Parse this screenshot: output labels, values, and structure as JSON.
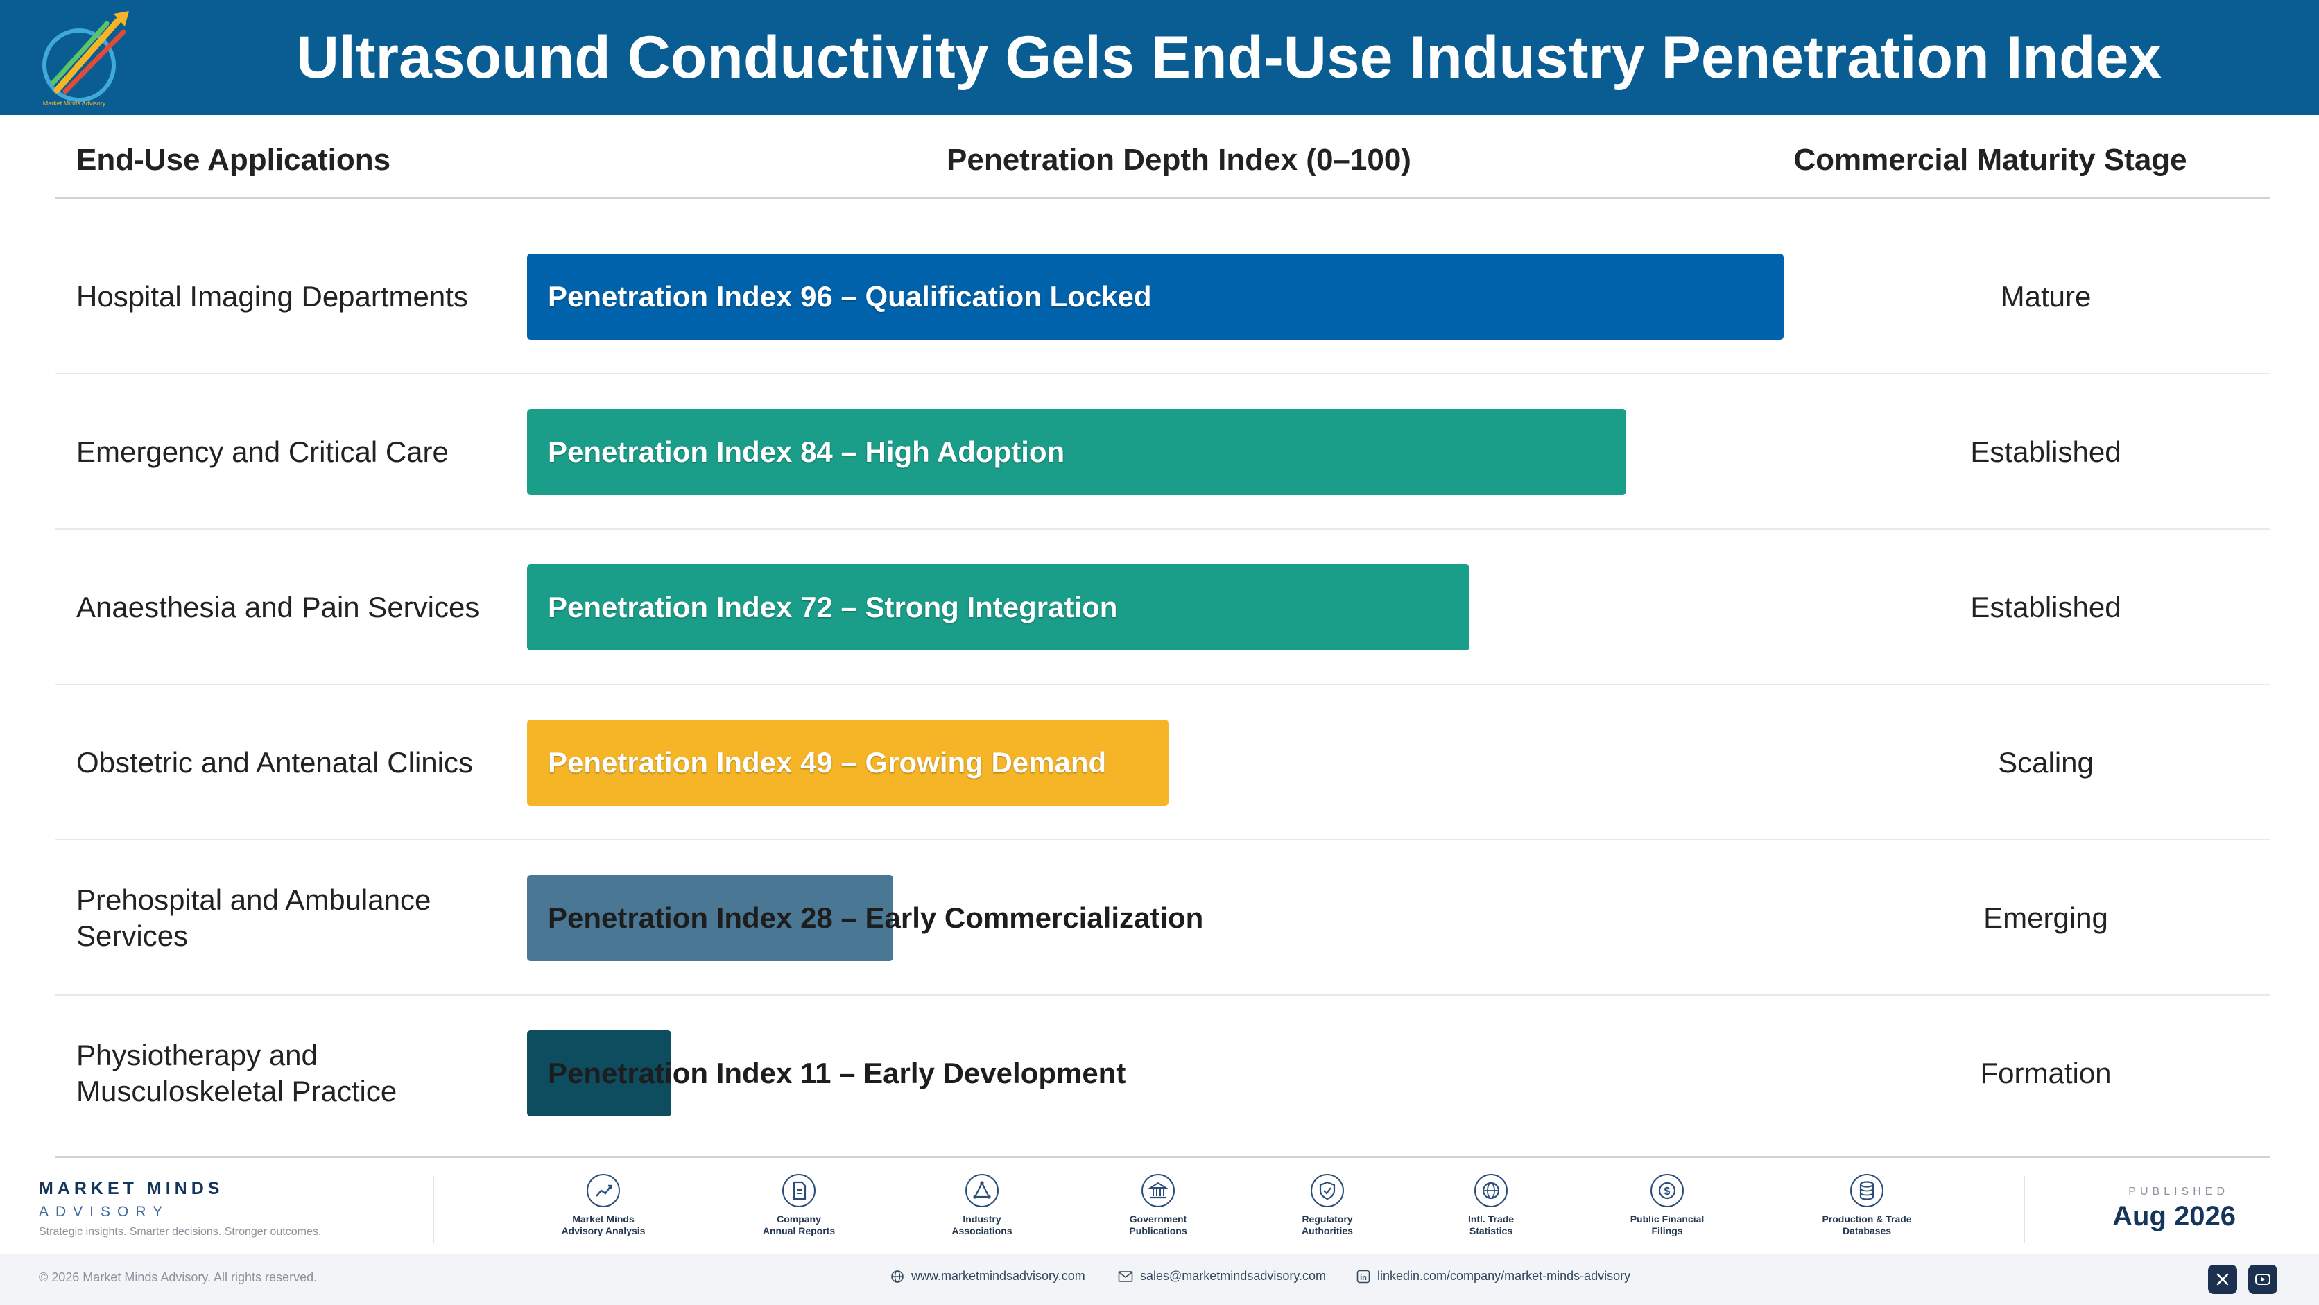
{
  "title": "Ultrasound Conductivity Gels End-Use Industry Penetration Index",
  "logo_text": "Market Minds Advisory",
  "columns": {
    "application": "End-Use Applications",
    "index": "Penetration Depth Index (0–100)",
    "stage": "Commercial Maturity Stage"
  },
  "chart_data": {
    "type": "bar",
    "orientation": "horizontal",
    "xlim": [
      0,
      100
    ],
    "categories": [
      "Hospital Imaging Departments",
      "Emergency and Critical Care",
      "Anaesthesia and Pain Services",
      "Obstetric and Antenatal Clinics",
      "Prehospital and Ambulance Services",
      "Physiotherapy and Musculoskeletal Practice"
    ],
    "values": [
      96,
      84,
      72,
      49,
      28,
      11
    ],
    "rows": [
      {
        "label": "Hospital Imaging Departments",
        "value": 96,
        "bar_label": "Penetration Index 96 – Qualification Locked",
        "stage": "Mature",
        "color": "#0062ab"
      },
      {
        "label": "Emergency and Critical Care",
        "value": 84,
        "bar_label": "Penetration Index 84 – High Adoption",
        "stage": "Established",
        "color": "#1a9e8a"
      },
      {
        "label": "Anaesthesia and Pain Services",
        "value": 72,
        "bar_label": "Penetration Index 72 – Strong Integration",
        "stage": "Established",
        "color": "#1a9e8a"
      },
      {
        "label": "Obstetric and Antenatal Clinics",
        "value": 49,
        "bar_label": "Penetration Index 49 – Growing Demand",
        "stage": "Scaling",
        "color": "#f6b427"
      },
      {
        "label": "Prehospital and Ambulance Services",
        "value": 28,
        "bar_label": "Penetration Index 28 – Early Commercialization",
        "stage": "Emerging",
        "color": "#4a7793"
      },
      {
        "label": "Physiotherapy and Musculoskeletal Practice",
        "value": 11,
        "bar_label": "Penetration Index 11 – Early Development",
        "stage": "Formation",
        "color": "#0e4c5f"
      }
    ]
  },
  "footer": {
    "brand_name": "MARKET MINDS",
    "brand_sub": "ADVISORY",
    "tagline": "Strategic insights. Smarter decisions. Stronger outcomes.",
    "sources": [
      {
        "icon": "chart-line-icon",
        "line1": "Market Minds",
        "line2": "Advisory Analysis"
      },
      {
        "icon": "document-icon",
        "line1": "Company",
        "line2": "Annual Reports"
      },
      {
        "icon": "network-icon",
        "line1": "Industry",
        "line2": "Associations"
      },
      {
        "icon": "government-building-icon",
        "line1": "Government",
        "line2": "Publications"
      },
      {
        "icon": "shield-check-icon",
        "line1": "Regulatory",
        "line2": "Authorities"
      },
      {
        "icon": "globe-icon",
        "line1": "Intl. Trade",
        "line2": "Statistics"
      },
      {
        "icon": "dollar-coin-icon",
        "line1": "Public Financial",
        "line2": "Filings"
      },
      {
        "icon": "database-icon",
        "line1": "Production & Trade",
        "line2": "Databases"
      }
    ],
    "published_label": "PUBLISHED",
    "published_date": "Aug 2026",
    "copyright": "© 2026 Market Minds Advisory. All rights reserved.",
    "website": "www.marketmindsadvisory.com",
    "email": "sales@marketmindsadvisory.com",
    "linkedin": "linkedin.com/company/market-minds-advisory"
  }
}
